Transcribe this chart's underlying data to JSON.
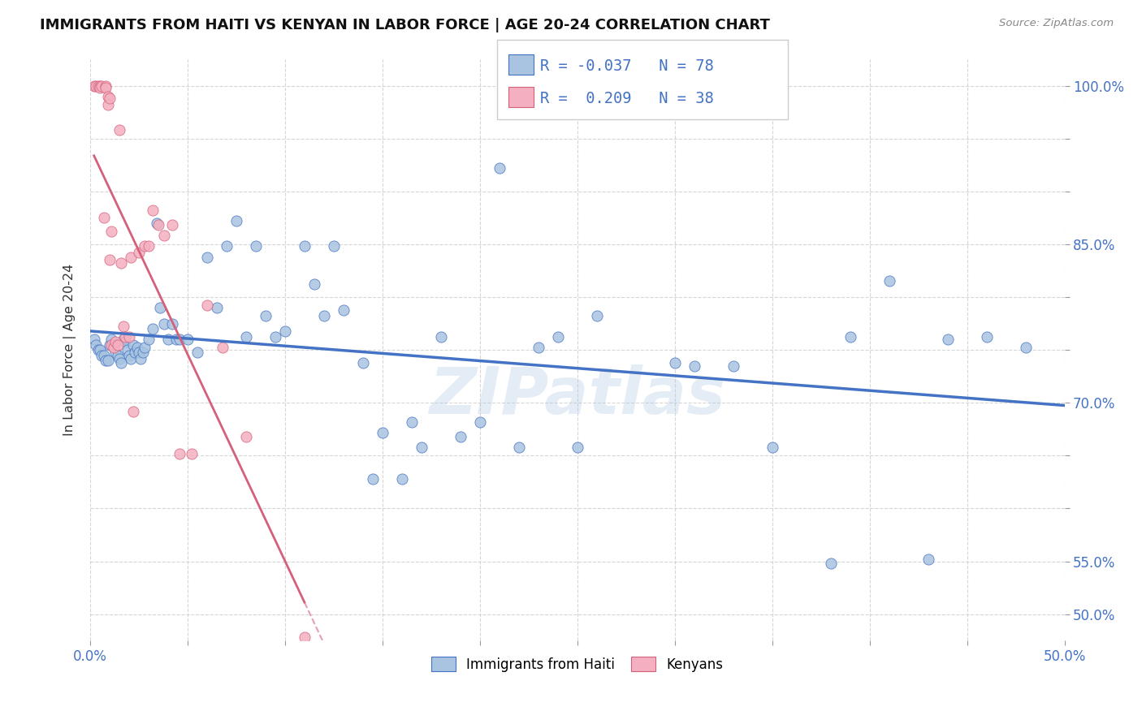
{
  "title": "IMMIGRANTS FROM HAITI VS KENYAN IN LABOR FORCE | AGE 20-24 CORRELATION CHART",
  "source": "Source: ZipAtlas.com",
  "ylabel": "In Labor Force | Age 20-24",
  "xlim": [
    0.0,
    0.5
  ],
  "ylim": [
    0.475,
    1.025
  ],
  "xticks": [
    0.0,
    0.05,
    0.1,
    0.15,
    0.2,
    0.25,
    0.3,
    0.35,
    0.4,
    0.45,
    0.5
  ],
  "xtick_labels": [
    "0.0%",
    "",
    "",
    "",
    "",
    "",
    "",
    "",
    "",
    "",
    "50.0%"
  ],
  "ytick_positions": [
    0.5,
    0.55,
    0.6,
    0.65,
    0.7,
    0.75,
    0.8,
    0.85,
    0.9,
    0.95,
    1.0
  ],
  "ytick_labels": [
    "50.0%",
    "55.0%",
    "",
    "",
    "70.0%",
    "",
    "",
    "85.0%",
    "",
    "",
    "100.0%"
  ],
  "haiti_color": "#a8c4e0",
  "kenya_color": "#f4b0c0",
  "haiti_line_color": "#4472c4",
  "kenya_line_color": "#d4607a",
  "watermark": "ZIPatlas",
  "R_haiti": -0.037,
  "N_haiti": 78,
  "R_kenya": 0.209,
  "N_kenya": 38,
  "haiti_x": [
    0.002,
    0.003,
    0.004,
    0.005,
    0.006,
    0.007,
    0.008,
    0.009,
    0.01,
    0.011,
    0.012,
    0.013,
    0.014,
    0.015,
    0.016,
    0.017,
    0.018,
    0.019,
    0.02,
    0.021,
    0.022,
    0.023,
    0.024,
    0.025,
    0.026,
    0.027,
    0.028,
    0.03,
    0.032,
    0.034,
    0.036,
    0.038,
    0.04,
    0.042,
    0.044,
    0.046,
    0.05,
    0.055,
    0.06,
    0.065,
    0.07,
    0.075,
    0.08,
    0.085,
    0.09,
    0.095,
    0.1,
    0.11,
    0.115,
    0.12,
    0.125,
    0.13,
    0.14,
    0.145,
    0.15,
    0.16,
    0.165,
    0.17,
    0.18,
    0.19,
    0.2,
    0.21,
    0.22,
    0.23,
    0.24,
    0.25,
    0.26,
    0.3,
    0.31,
    0.33,
    0.35,
    0.38,
    0.39,
    0.41,
    0.43,
    0.44,
    0.46,
    0.48
  ],
  "haiti_y": [
    0.76,
    0.755,
    0.75,
    0.75,
    0.745,
    0.745,
    0.74,
    0.74,
    0.755,
    0.76,
    0.755,
    0.748,
    0.745,
    0.742,
    0.738,
    0.76,
    0.758,
    0.75,
    0.745,
    0.742,
    0.755,
    0.748,
    0.752,
    0.748,
    0.742,
    0.748,
    0.752,
    0.76,
    0.77,
    0.87,
    0.79,
    0.775,
    0.76,
    0.775,
    0.76,
    0.76,
    0.76,
    0.748,
    0.838,
    0.79,
    0.848,
    0.872,
    0.762,
    0.848,
    0.782,
    0.762,
    0.768,
    0.848,
    0.812,
    0.782,
    0.848,
    0.788,
    0.738,
    0.628,
    0.672,
    0.628,
    0.682,
    0.658,
    0.762,
    0.668,
    0.682,
    0.922,
    0.658,
    0.752,
    0.762,
    0.658,
    0.782,
    0.738,
    0.735,
    0.735,
    0.658,
    0.548,
    0.762,
    0.815,
    0.552,
    0.76,
    0.762,
    0.752
  ],
  "kenya_x": [
    0.002,
    0.003,
    0.004,
    0.005,
    0.005,
    0.006,
    0.007,
    0.008,
    0.008,
    0.009,
    0.009,
    0.01,
    0.01,
    0.011,
    0.011,
    0.012,
    0.013,
    0.014,
    0.015,
    0.016,
    0.017,
    0.018,
    0.02,
    0.021,
    0.022,
    0.025,
    0.028,
    0.03,
    0.032,
    0.035,
    0.038,
    0.042,
    0.046,
    0.052,
    0.06,
    0.068,
    0.08,
    0.11
  ],
  "kenya_y": [
    1.0,
    1.0,
    1.0,
    1.0,
    0.998,
    1.0,
    0.875,
    1.0,
    0.998,
    0.99,
    0.982,
    0.988,
    0.835,
    0.862,
    0.755,
    0.752,
    0.758,
    0.755,
    0.958,
    0.832,
    0.772,
    0.762,
    0.762,
    0.838,
    0.692,
    0.842,
    0.848,
    0.848,
    0.882,
    0.868,
    0.858,
    0.868,
    0.652,
    0.652,
    0.792,
    0.752,
    0.668,
    0.478
  ]
}
